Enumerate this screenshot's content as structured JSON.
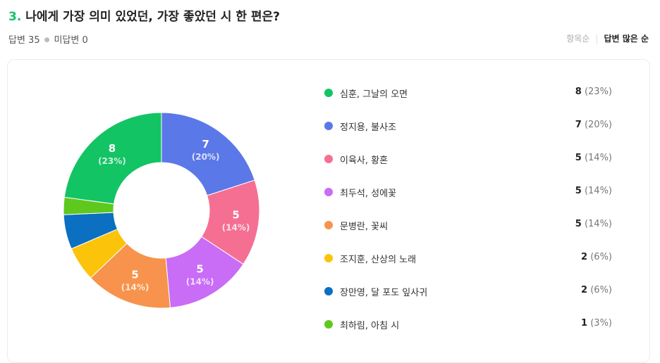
{
  "question": {
    "number": "3.",
    "title": "나에게 가장 의미 있었던, 가장 좋았던 시 한 편은?"
  },
  "stats": {
    "answered": "답변 35",
    "unanswered": "미답변 0"
  },
  "sort": {
    "by_order": "항목순",
    "by_count": "답변 많은 순",
    "active": "답변 많은 순"
  },
  "chart_data": {
    "type": "pie",
    "donut": true,
    "categories": [
      "심훈, 그날의 오면",
      "정지용, 불사조",
      "이육사, 황혼",
      "최두석, 성에꽃",
      "문병란, 꽃씨",
      "조지훈, 산상의 노래",
      "장만영, 달 포도 잎사귀",
      "최하림, 아침 시"
    ],
    "values": [
      8,
      7,
      5,
      5,
      5,
      2,
      2,
      1
    ],
    "percents": [
      "(23%)",
      "(20%)",
      "(14%)",
      "(14%)",
      "(14%)",
      "(6%)",
      "(6%)",
      "(3%)"
    ],
    "colors": [
      "#13c464",
      "#5b78e8",
      "#f56f92",
      "#c96cf6",
      "#f7934c",
      "#fbc40a",
      "#0b6fc2",
      "#5fc81f"
    ],
    "slice_order": [
      1,
      2,
      3,
      4,
      5,
      6,
      7,
      0
    ],
    "slice_labels": [
      {
        "index": 1,
        "value": "7",
        "percent": "(20%)"
      },
      {
        "index": 2,
        "value": "5",
        "percent": "(14%)"
      },
      {
        "index": 3,
        "value": "5",
        "percent": "(14%)"
      },
      {
        "index": 4,
        "value": "5",
        "percent": "(14%)"
      },
      {
        "index": 0,
        "value": "8",
        "percent": "(23%)"
      }
    ],
    "legend_position": "right"
  }
}
